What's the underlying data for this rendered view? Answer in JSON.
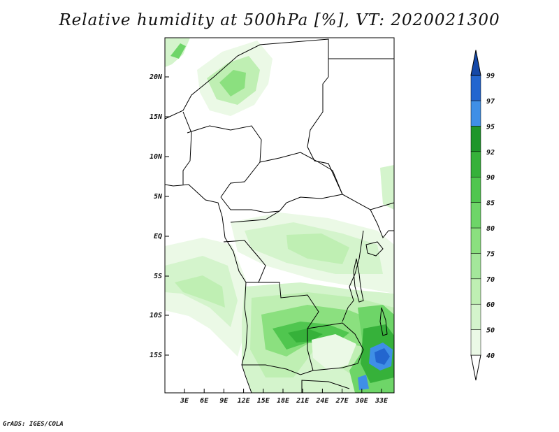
{
  "title": "Relative humidity at 500hPa [%], VT: 2020021300",
  "credit": "GrADS: IGES/COLA",
  "map": {
    "lon_range": [
      0,
      35
    ],
    "lat_range": [
      -20,
      24
    ],
    "lat_ticks": [
      "20N",
      "15N",
      "10N",
      "5N",
      "EQ",
      "5S",
      "10S",
      "15S"
    ],
    "lon_ticks": [
      "3E",
      "6E",
      "9E",
      "12E",
      "15E",
      "18E",
      "21E",
      "24E",
      "27E",
      "30E",
      "33E"
    ]
  },
  "colorbar": {
    "labels": [
      "40",
      "50",
      "60",
      "70",
      "75",
      "80",
      "85",
      "90",
      "92",
      "95",
      "97",
      "99"
    ],
    "colors": {
      "c40": "#ebf9e6",
      "c50": "#d4f4cc",
      "c60": "#bfefb3",
      "c70": "#a4e79b",
      "c75": "#8be07f",
      "c80": "#6ed568",
      "c85": "#50c64f",
      "c90": "#36b13a",
      "c92": "#1f962a",
      "c95": "#3f8fe6",
      "c97": "#2366cf",
      "c99": "#1448a8"
    }
  }
}
